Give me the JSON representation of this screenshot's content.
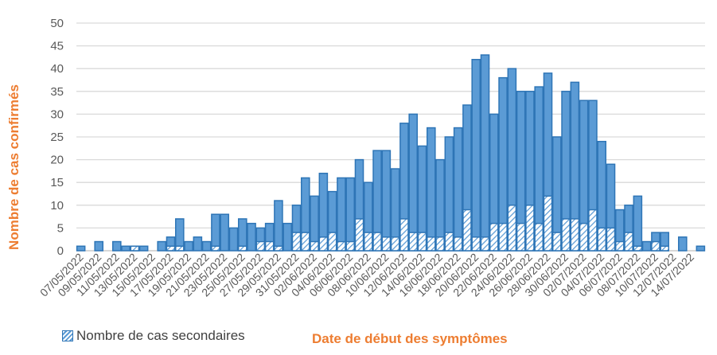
{
  "chart_data": {
    "type": "bar",
    "title": "",
    "xlabel": "Date de début des symptômes",
    "ylabel": "Nombre de cas confirmés",
    "ylim": [
      0,
      50
    ],
    "yticks": [
      0,
      5,
      10,
      15,
      20,
      25,
      30,
      35,
      40,
      45,
      50
    ],
    "grid": true,
    "legend_position": "bottom-left",
    "stacked_overlay": true,
    "categories": [
      "07/05/2022",
      "08/05/2022",
      "09/05/2022",
      "10/05/2022",
      "11/05/2022",
      "12/05/2022",
      "13/05/2022",
      "14/05/2022",
      "15/05/2022",
      "16/05/2022",
      "17/05/2022",
      "18/05/2022",
      "19/05/2022",
      "20/05/2022",
      "21/05/2022",
      "22/05/2022",
      "23/05/2022",
      "24/05/2022",
      "25/05/2022",
      "26/05/2022",
      "27/05/2022",
      "28/05/2022",
      "29/05/2022",
      "30/05/2022",
      "31/05/2022",
      "01/06/2022",
      "02/06/2022",
      "03/06/2022",
      "04/06/2022",
      "05/06/2022",
      "06/06/2022",
      "07/06/2022",
      "08/06/2022",
      "09/06/2022",
      "10/06/2022",
      "11/06/2022",
      "12/06/2022",
      "13/06/2022",
      "14/06/2022",
      "15/06/2022",
      "16/06/2022",
      "17/06/2022",
      "18/06/2022",
      "19/06/2022",
      "20/06/2022",
      "21/06/2022",
      "22/06/2022",
      "23/06/2022",
      "24/06/2022",
      "25/06/2022",
      "26/06/2022",
      "27/06/2022",
      "28/06/2022",
      "29/06/2022",
      "30/06/2022",
      "01/07/2022",
      "02/07/2022",
      "03/07/2022",
      "04/07/2022",
      "05/07/2022",
      "06/07/2022",
      "07/07/2022",
      "08/07/2022",
      "09/07/2022",
      "10/07/2022",
      "11/07/2022",
      "12/07/2022",
      "13/07/2022",
      "14/07/2022",
      "15/07/2022"
    ],
    "tick_labels": [
      "07/05/2022",
      "09/05/2022",
      "11/05/2022",
      "13/05/2022",
      "15/05/2022",
      "17/05/2022",
      "19/05/2022",
      "21/05/2022",
      "23/05/2022",
      "25/05/2022",
      "27/05/2022",
      "29/05/2022",
      "31/05/2022",
      "02/06/2022",
      "04/06/2022",
      "06/06/2022",
      "08/06/2022",
      "10/06/2022",
      "12/06/2022",
      "14/06/2022",
      "16/06/2022",
      "18/06/2022",
      "20/06/2022",
      "22/06/2022",
      "24/06/2022",
      "26/06/2022",
      "28/06/2022",
      "30/06/2022",
      "02/07/2022",
      "04/07/2022",
      "06/07/2022",
      "08/07/2022",
      "10/07/2022",
      "12/07/2022",
      "14/07/2022"
    ],
    "series": [
      {
        "name": "Nombre de cas confirmés",
        "color": "#5b9bd5",
        "values": [
          1,
          0,
          2,
          0,
          2,
          1,
          1,
          1,
          0,
          2,
          3,
          7,
          2,
          3,
          2,
          8,
          8,
          5,
          7,
          6,
          5,
          6,
          11,
          6,
          10,
          16,
          12,
          17,
          13,
          16,
          16,
          20,
          15,
          22,
          22,
          18,
          28,
          30,
          23,
          27,
          20,
          25,
          27,
          32,
          42,
          43,
          30,
          38,
          40,
          35,
          35,
          36,
          39,
          25,
          35,
          37,
          33,
          33,
          24,
          19,
          9,
          10,
          12,
          2,
          4,
          4,
          0,
          3,
          0,
          1
        ]
      },
      {
        "name": "Nombre de cas secondaires",
        "pattern": "hatched",
        "values": [
          0,
          0,
          0,
          0,
          0,
          0,
          1,
          0,
          0,
          0,
          1,
          1,
          0,
          0,
          0,
          1,
          0,
          0,
          1,
          0,
          2,
          2,
          1,
          0,
          4,
          4,
          2,
          3,
          4,
          2,
          2,
          7,
          4,
          4,
          3,
          3,
          7,
          4,
          4,
          3,
          3,
          4,
          3,
          9,
          3,
          3,
          6,
          6,
          10,
          6,
          10,
          6,
          12,
          4,
          7,
          7,
          6,
          9,
          5,
          5,
          2,
          4,
          1,
          0,
          2,
          1,
          0,
          0,
          0,
          0
        ]
      }
    ]
  },
  "legend": {
    "secondary_label": "Nombre de cas secondaires"
  },
  "axes": {
    "xlabel": "Date de début des symptômes",
    "ylabel": "Nombre de cas confirmés"
  }
}
